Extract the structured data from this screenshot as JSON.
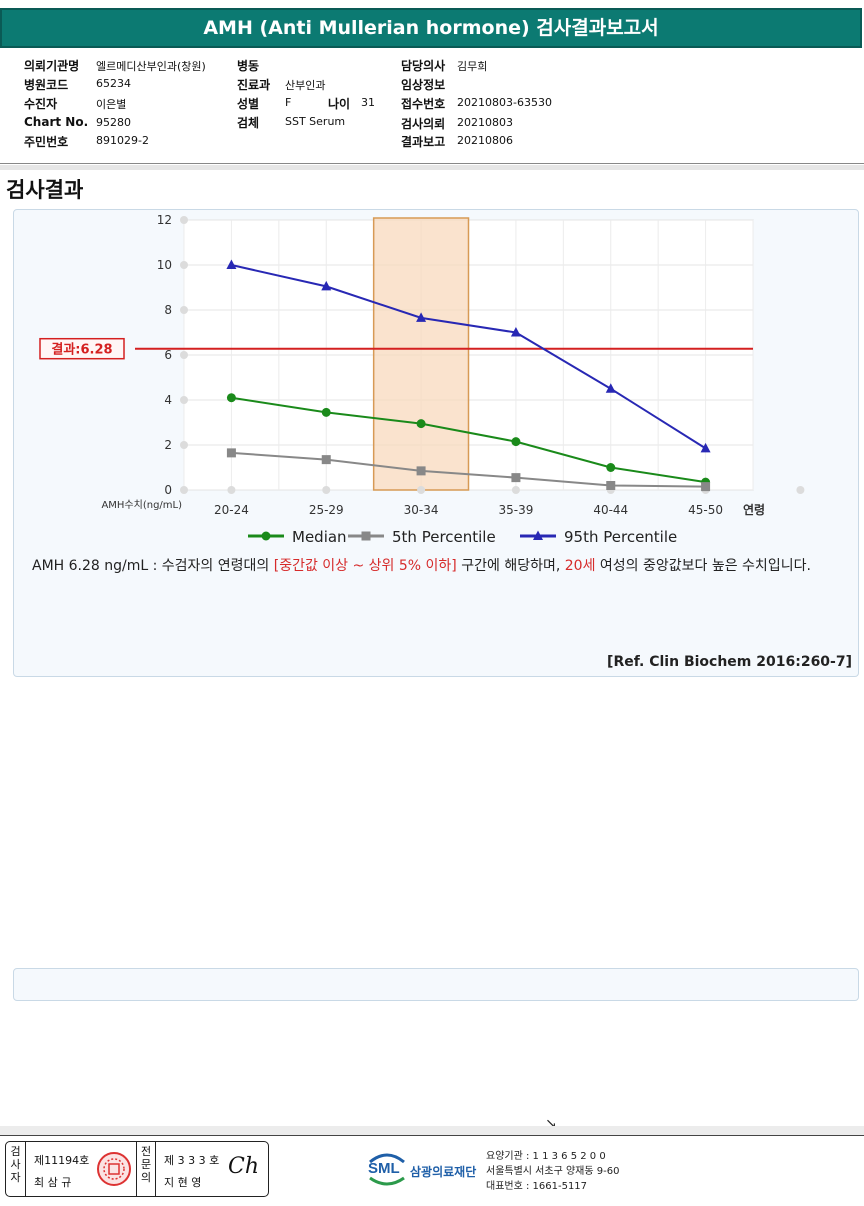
{
  "report": {
    "title": "AMH (Anti Mullerian hormone) 검사결과보고서"
  },
  "info": {
    "institution_label": "의뢰기관명",
    "institution": "엘르메디산부인과(창원)",
    "hospital_code_label": "병원코드",
    "hospital_code": "65234",
    "patient_label": "수진자",
    "patient": "이은별",
    "chart_no_label": "Chart No.",
    "chart_no": "95280",
    "resident_no_label": "주민번호",
    "resident_no": "891029-2",
    "ward_label": "병동",
    "ward": "",
    "department_label": "진료과",
    "department": "산부인과",
    "sex_label": "성별",
    "sex": "F",
    "age_label": "나이",
    "age": "31",
    "specimen_label": "검체",
    "specimen": "SST Serum",
    "doctor_label": "담당의사",
    "doctor": "김무희",
    "clinical_label": "임상정보",
    "clinical": "",
    "receipt_no_label": "접수번호",
    "receipt_no": "20210803-63530",
    "request_label": "검사의뢰",
    "request_date": "20210803",
    "report_label": "결과보고",
    "report_date": "20210806"
  },
  "section_title": "검사결과",
  "chart_data": {
    "type": "line",
    "categories": [
      "20-24",
      "25-29",
      "30-34",
      "35-39",
      "40-44",
      "45-50"
    ],
    "x_axis_suffix": "연령",
    "y_axis_label": "AMH수치(ng/mL)",
    "ylim": [
      0,
      12
    ],
    "yticks": [
      0,
      2,
      4,
      6,
      8,
      10,
      12
    ],
    "grid": true,
    "legend_position": "bottom",
    "series": [
      {
        "name": "Median",
        "marker": "circle",
        "color": "#1a8a1a",
        "values": [
          4.1,
          3.45,
          2.95,
          2.15,
          1.0,
          0.35
        ]
      },
      {
        "name": "5th Percentile",
        "marker": "square",
        "color": "#888888",
        "values": [
          1.65,
          1.35,
          0.85,
          0.55,
          0.2,
          0.15
        ]
      },
      {
        "name": "95th Percentile",
        "marker": "triangle",
        "color": "#2828b4",
        "values": [
          10.0,
          9.05,
          7.65,
          7.0,
          4.5,
          1.85
        ]
      }
    ],
    "highlight_category": "30-34",
    "highlight_color": "#f8d9bd",
    "result_line": {
      "value": 6.28,
      "label": "결과:6.28",
      "color": "#d42020"
    }
  },
  "description": {
    "part1": "AMH  6.28 ng/mL : 수검자의 연령대의 ",
    "range_text": "[중간값 이상 ~ 상위 5% 이하]",
    "part2": "  구간에 해당하며, ",
    "age_text": "20세",
    "part3": " 여성의 중앙값보다 높은 수치입니다."
  },
  "reference": "[Ref. Clin Biochem 2016:260-7]",
  "cursor_glyph": "↘",
  "footer": {
    "inspector_label": "검사자",
    "inspector_license": "제11194호",
    "inspector_name": "최 삼 규",
    "specialist_label": "전문의",
    "specialist_license": "제 3 3 3 호",
    "specialist_name": "지 현 영",
    "signature": "Ch",
    "logo_text": "SML",
    "foundation_name": "삼광의료재단",
    "institution_code": "요양기관 : 1 1 3 6 5 2 0 0",
    "address": "서울특별시 서초구 양재동 9-60",
    "phone": "대표번호 : 1661-5117"
  }
}
